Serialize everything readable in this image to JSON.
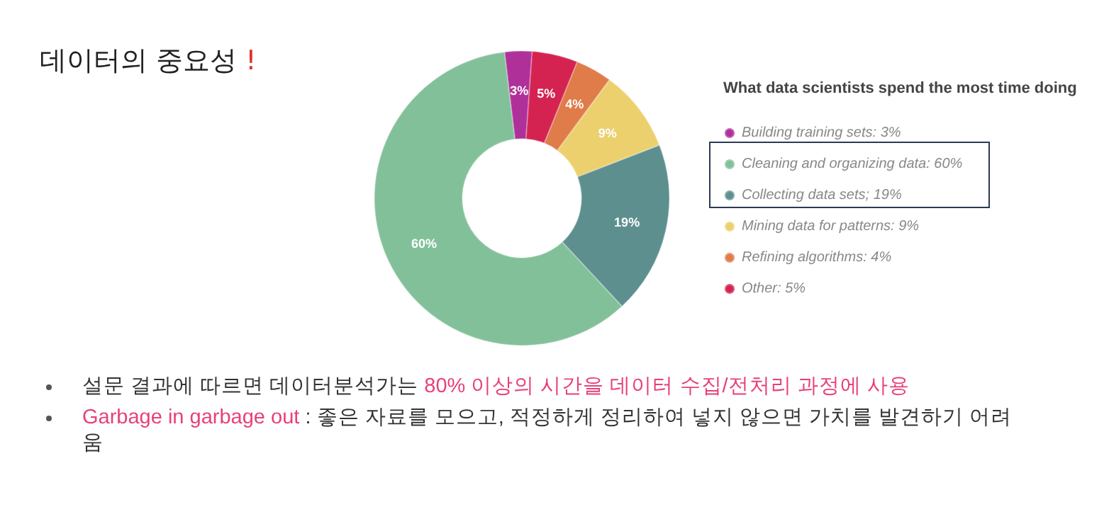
{
  "chart_data": {
    "type": "donut",
    "title": "데이터의 중요성 !",
    "legend_title": "What data scientists spend the most time doing",
    "categories": [
      "Building training sets: 3%",
      "Cleaning and organizing data: 60%",
      "Collecting data sets; 19%",
      "Mining data for patterns: 9%",
      "Refining algorithms: 4%",
      "Other: 5%"
    ],
    "values": [
      3,
      60,
      19,
      9,
      4,
      5
    ],
    "value_labels": [
      "3%",
      "60%",
      "19%",
      "9%",
      "4%",
      "5%"
    ],
    "colors": [
      "#b0309a",
      "#82c09a",
      "#5e8f8f",
      "#ecd06e",
      "#e07b4a",
      "#d42350"
    ],
    "legend": "right",
    "annotations": [
      "설문 결과에 따르면 데이터분석가는 ",
      "80% 이상의 시간을 데이터 수집/전처리 과정에 사용",
      "Garbage in garbage out",
      " : 좋은 자료를 모으고, 적정하게 정리하여 넣지 않으면 가치를 발견하기 어려움"
    ]
  }
}
